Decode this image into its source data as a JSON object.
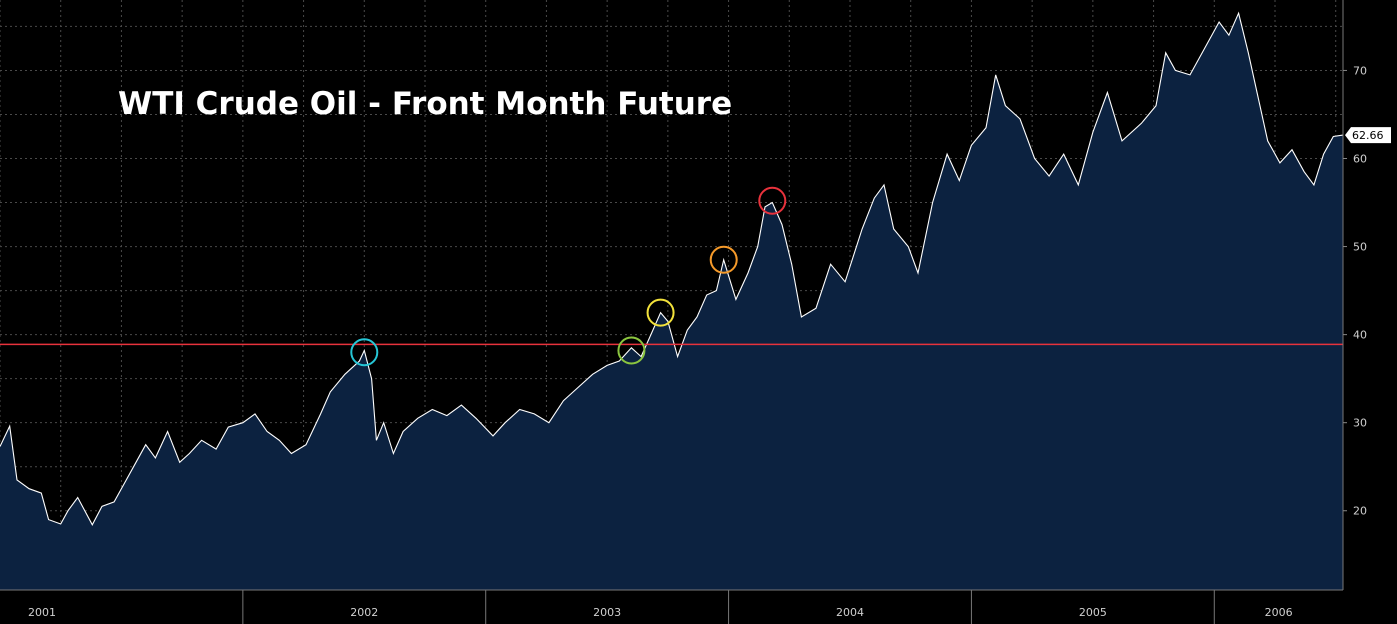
{
  "chart_data": {
    "type": "area",
    "title": "WTI Crude Oil - Front Month Future",
    "xlabel": "",
    "ylabel": "",
    "grid": true,
    "x_tick_labels": [
      "2001",
      "2002",
      "2003",
      "2004",
      "2005",
      "2006"
    ],
    "y_tick_labels": [
      20,
      30,
      40,
      50,
      60,
      70
    ],
    "ylim": [
      11,
      78
    ],
    "xlim": [
      2001.0,
      2006.53
    ],
    "last_value": 62.66,
    "last_value_label": "62.66",
    "reference_line": {
      "value": 38.9,
      "color": "#e8323c"
    },
    "colors": {
      "fill": "#0c2240",
      "line": "#ffffff",
      "grid": "#4a4a4a",
      "background": "#000000"
    },
    "series": [
      {
        "values": [
          [
            2001.0,
            27.3
          ],
          [
            2001.04,
            29.6
          ],
          [
            2001.07,
            23.5
          ],
          [
            2001.12,
            22.5
          ],
          [
            2001.17,
            22.0
          ],
          [
            2001.2,
            19.0
          ],
          [
            2001.25,
            18.5
          ],
          [
            2001.28,
            20.0
          ],
          [
            2001.32,
            21.5
          ],
          [
            2001.38,
            18.4
          ],
          [
            2001.42,
            20.5
          ],
          [
            2001.47,
            21.0
          ],
          [
            2001.52,
            23.5
          ],
          [
            2001.56,
            25.5
          ],
          [
            2001.6,
            27.5
          ],
          [
            2001.64,
            26.0
          ],
          [
            2001.69,
            29.0
          ],
          [
            2001.74,
            25.5
          ],
          [
            2001.78,
            26.5
          ],
          [
            2001.83,
            28.0
          ],
          [
            2001.89,
            27.0
          ],
          [
            2001.94,
            29.5
          ],
          [
            2002.0,
            30.0
          ],
          [
            2002.05,
            31.0
          ],
          [
            2002.1,
            29.0
          ],
          [
            2002.15,
            28.0
          ],
          [
            2002.2,
            26.5
          ],
          [
            2002.26,
            27.5
          ],
          [
            2002.32,
            31.0
          ],
          [
            2002.36,
            33.5
          ],
          [
            2002.42,
            35.5
          ],
          [
            2002.48,
            37.0
          ],
          [
            2002.5,
            38.2
          ],
          [
            2002.53,
            35.0
          ],
          [
            2002.55,
            28.0
          ],
          [
            2002.58,
            30.0
          ],
          [
            2002.62,
            26.5
          ],
          [
            2002.66,
            29.0
          ],
          [
            2002.72,
            30.5
          ],
          [
            2002.78,
            31.5
          ],
          [
            2002.84,
            30.8
          ],
          [
            2002.9,
            32.0
          ],
          [
            2002.96,
            30.5
          ],
          [
            2003.03,
            28.5
          ],
          [
            2003.08,
            30.0
          ],
          [
            2003.14,
            31.5
          ],
          [
            2003.2,
            31.0
          ],
          [
            2003.26,
            30.0
          ],
          [
            2003.32,
            32.5
          ],
          [
            2003.38,
            34.0
          ],
          [
            2003.44,
            35.5
          ],
          [
            2003.5,
            36.5
          ],
          [
            2003.55,
            37.0
          ],
          [
            2003.6,
            38.5
          ],
          [
            2003.64,
            37.5
          ],
          [
            2003.68,
            40.0
          ],
          [
            2003.72,
            42.5
          ],
          [
            2003.75,
            41.5
          ],
          [
            2003.79,
            37.5
          ],
          [
            2003.83,
            40.5
          ],
          [
            2003.87,
            42.0
          ],
          [
            2003.91,
            44.5
          ],
          [
            2003.95,
            45.0
          ],
          [
            2003.98,
            48.5
          ],
          [
            2004.03,
            44.0
          ],
          [
            2004.08,
            47.0
          ],
          [
            2004.12,
            50.0
          ],
          [
            2004.15,
            54.5
          ],
          [
            2004.18,
            55.0
          ],
          [
            2004.22,
            52.5
          ],
          [
            2004.26,
            48.0
          ],
          [
            2004.3,
            42.0
          ],
          [
            2004.36,
            43.0
          ],
          [
            2004.42,
            48.0
          ],
          [
            2004.48,
            46.0
          ],
          [
            2004.55,
            52.0
          ],
          [
            2004.6,
            55.5
          ],
          [
            2004.64,
            57.0
          ],
          [
            2004.68,
            52.0
          ],
          [
            2004.74,
            50.0
          ],
          [
            2004.78,
            47.0
          ],
          [
            2004.84,
            55.0
          ],
          [
            2004.9,
            60.5
          ],
          [
            2004.95,
            57.5
          ],
          [
            2005.0,
            61.5
          ],
          [
            2005.06,
            63.5
          ],
          [
            2005.1,
            69.5
          ],
          [
            2005.14,
            66.0
          ],
          [
            2005.2,
            64.5
          ],
          [
            2005.26,
            60.0
          ],
          [
            2005.32,
            58.0
          ],
          [
            2005.38,
            60.5
          ],
          [
            2005.44,
            57.0
          ],
          [
            2005.5,
            63.0
          ],
          [
            2005.56,
            67.5
          ],
          [
            2005.62,
            62.0
          ],
          [
            2005.7,
            64.0
          ],
          [
            2005.76,
            66.0
          ],
          [
            2005.8,
            72.0
          ],
          [
            2005.84,
            70.0
          ],
          [
            2005.9,
            69.5
          ],
          [
            2005.96,
            72.5
          ],
          [
            2006.02,
            75.5
          ],
          [
            2006.06,
            74.0
          ],
          [
            2006.1,
            76.5
          ],
          [
            2006.14,
            72.0
          ],
          [
            2006.18,
            67.0
          ],
          [
            2006.22,
            62.0
          ],
          [
            2006.27,
            59.5
          ],
          [
            2006.32,
            61.0
          ],
          [
            2006.37,
            58.5
          ],
          [
            2006.41,
            57.0
          ],
          [
            2006.45,
            60.5
          ],
          [
            2006.49,
            62.5
          ],
          [
            2006.53,
            62.66
          ]
        ]
      }
    ],
    "annotations": [
      {
        "type": "circle",
        "x": 2002.5,
        "y": 38.0,
        "color": "#26c6d6"
      },
      {
        "type": "circle",
        "x": 2003.6,
        "y": 38.2,
        "color": "#8bc53f"
      },
      {
        "type": "circle",
        "x": 2003.72,
        "y": 42.5,
        "color": "#f3e23b"
      },
      {
        "type": "circle",
        "x": 2003.98,
        "y": 48.5,
        "color": "#f59a2a"
      },
      {
        "type": "circle",
        "x": 2004.18,
        "y": 55.2,
        "color": "#e8323c"
      }
    ]
  }
}
